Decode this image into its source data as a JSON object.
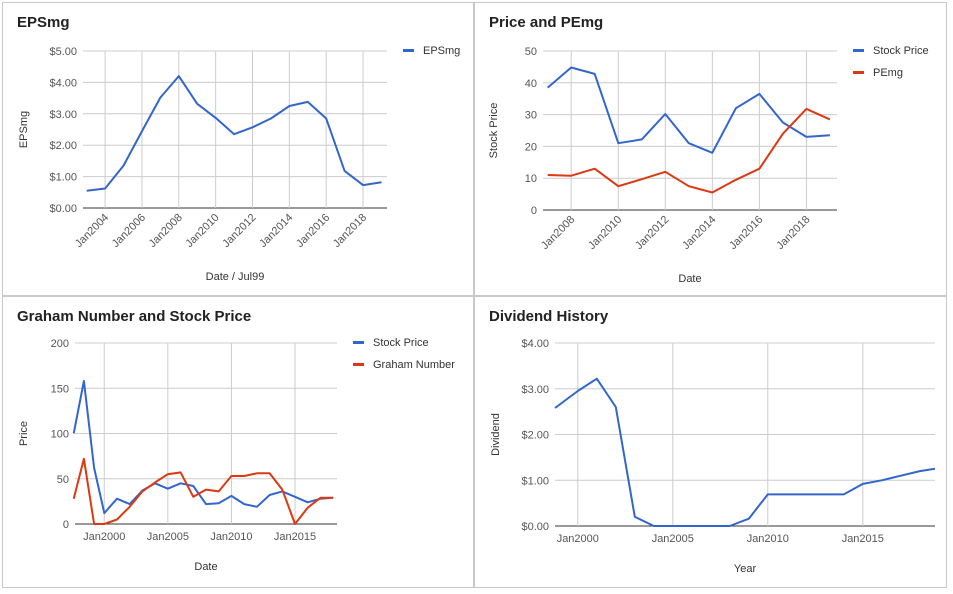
{
  "chart_data": [
    {
      "type": "line",
      "title": "EPSmg",
      "xlabel": "Date / Jul99",
      "ylabel": "EPSmg",
      "ylim": [
        0,
        5
      ],
      "y_ticks": [
        "$0.00",
        "$1.00",
        "$2.00",
        "$3.00",
        "$4.00",
        "$5.00"
      ],
      "x_ticks": [
        "Jan2004",
        "Jan2006",
        "Jan2008",
        "Jan2010",
        "Jan2012",
        "Jan2014",
        "Jan2016",
        "Jan2018"
      ],
      "x_tick_values": [
        2004,
        2006,
        2008,
        2010,
        2012,
        2014,
        2016,
        2018
      ],
      "xlim": [
        2002.8,
        2019.3
      ],
      "x_tick_rotate": true,
      "grid": true,
      "legend_position": "right",
      "series": [
        {
          "name": "EPSmg",
          "color": "#3366cc",
          "x": [
            2003,
            2004,
            2005,
            2006,
            2007,
            2008,
            2009,
            2010,
            2011,
            2012,
            2013,
            2014,
            2015,
            2016,
            2017,
            2018,
            2019
          ],
          "y": [
            0.55,
            0.62,
            1.35,
            2.45,
            3.52,
            4.2,
            3.32,
            2.87,
            2.35,
            2.57,
            2.85,
            3.25,
            3.38,
            2.85,
            1.18,
            0.73,
            0.82
          ]
        }
      ]
    },
    {
      "type": "line",
      "title": "Price and PEmg",
      "xlabel": "Date",
      "ylabel": "Stock Price",
      "ylim": [
        0,
        50
      ],
      "y_ticks": [
        "0",
        "10",
        "20",
        "30",
        "40",
        "50"
      ],
      "x_ticks": [
        "Jan2008",
        "Jan2010",
        "Jan2012",
        "Jan2014",
        "Jan2016",
        "Jan2018"
      ],
      "x_tick_values": [
        2008,
        2010,
        2012,
        2014,
        2016,
        2018
      ],
      "xlim": [
        2006.8,
        2019.3
      ],
      "x_tick_rotate": true,
      "grid": true,
      "legend_position": "right",
      "series": [
        {
          "name": "Stock Price",
          "color": "#3366cc",
          "x": [
            2007,
            2008,
            2009,
            2010,
            2011,
            2012,
            2013,
            2014,
            2015,
            2016,
            2017,
            2018,
            2019
          ],
          "y": [
            38.5,
            44.8,
            42.8,
            21,
            22.2,
            30.2,
            21,
            18,
            32,
            36.5,
            27.5,
            23,
            23.5
          ]
        },
        {
          "name": "PEmg",
          "color": "#dc3912",
          "x": [
            2007,
            2008,
            2009,
            2010,
            2011,
            2012,
            2013,
            2014,
            2015,
            2016,
            2017,
            2018,
            2019
          ],
          "y": [
            11,
            10.8,
            13,
            7.5,
            9.7,
            12,
            7.5,
            5.5,
            9.5,
            13,
            24,
            31.8,
            28.5
          ]
        }
      ]
    },
    {
      "type": "line",
      "title": "Graham Number and Stock Price",
      "xlabel": "Date",
      "ylabel": "Price",
      "ylim": [
        0,
        200
      ],
      "y_ticks": [
        "0",
        "50",
        "100",
        "150",
        "200"
      ],
      "x_ticks": [
        "Jan2000",
        "Jan2005",
        "Jan2010",
        "Jan2015"
      ],
      "x_tick_values": [
        2000,
        2005,
        2010,
        2015
      ],
      "xlim": [
        1997.7,
        2018.3
      ],
      "x_tick_rotate": false,
      "grid": true,
      "legend_position": "right",
      "series": [
        {
          "name": "Stock Price",
          "color": "#3366cc",
          "x": [
            1997.6,
            1998.4,
            1999.2,
            2000,
            2001,
            2002,
            2003,
            2004,
            2005,
            2006,
            2007,
            2008,
            2009,
            2010,
            2011,
            2012,
            2013,
            2014,
            2015,
            2016,
            2017,
            2018
          ],
          "y": [
            100,
            158,
            62,
            12,
            28,
            22,
            37,
            45,
            39,
            45,
            42,
            22,
            23,
            31,
            22,
            19,
            32,
            36,
            30,
            24,
            28,
            29
          ]
        },
        {
          "name": "Graham Number",
          "color": "#dc3912",
          "x": [
            1997.6,
            1998.4,
            1999.2,
            2000,
            2001,
            2002,
            2003,
            2004,
            2005,
            2006,
            2007,
            2008,
            2009,
            2010,
            2011,
            2012,
            2013,
            2014,
            2015,
            2016,
            2017,
            2018
          ],
          "y": [
            28,
            72,
            0,
            0,
            5,
            19,
            36,
            46,
            55,
            57,
            30,
            38,
            36,
            53,
            53,
            56,
            56,
            38,
            0,
            18,
            29,
            29
          ]
        }
      ]
    },
    {
      "type": "line",
      "title": "Dividend History",
      "xlabel": "Year",
      "ylabel": "Dividend",
      "ylim": [
        0,
        4
      ],
      "y_ticks": [
        "$0.00",
        "$1.00",
        "$2.00",
        "$3.00",
        "$4.00"
      ],
      "x_ticks": [
        "Jan2000",
        "Jan2005",
        "Jan2010",
        "Jan2015"
      ],
      "x_tick_values": [
        2000,
        2005,
        2010,
        2015
      ],
      "xlim": [
        1998.8,
        2018.8
      ],
      "x_tick_rotate": false,
      "grid": true,
      "legend_position": "none",
      "series": [
        {
          "color": "#3366cc",
          "x": [
            1998.8,
            2000,
            2001,
            2002,
            2003,
            2004,
            2005,
            2006,
            2007,
            2008,
            2009,
            2010,
            2011,
            2012,
            2013,
            2014,
            2015,
            2016,
            2017,
            2018,
            2018.8
          ],
          "y": [
            2.58,
            2.95,
            3.22,
            2.6,
            0.2,
            0,
            0,
            0,
            0,
            0,
            0.16,
            0.69,
            0.69,
            0.69,
            0.69,
            0.69,
            0.92,
            1.0,
            1.1,
            1.2,
            1.25
          ]
        }
      ]
    }
  ]
}
